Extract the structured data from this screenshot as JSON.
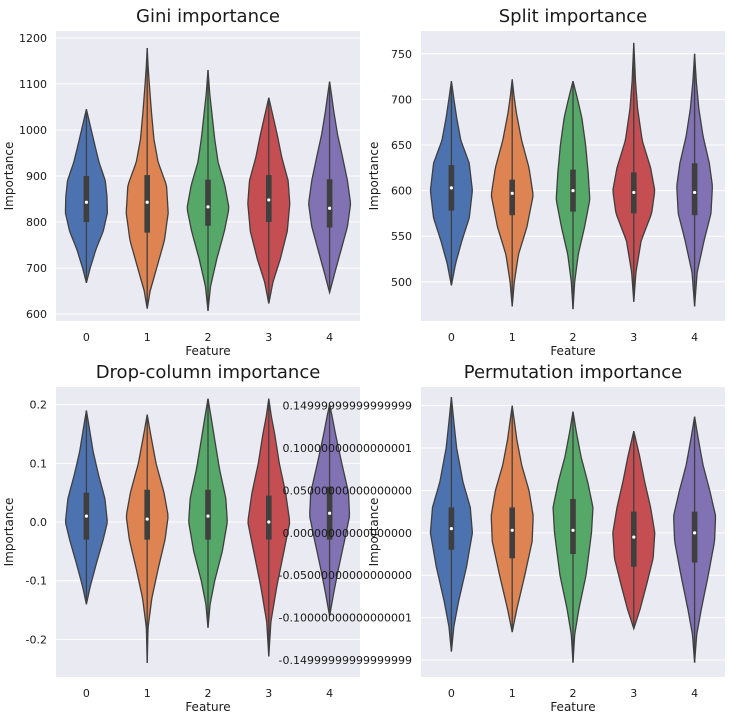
{
  "chart_data": [
    {
      "type": "violin",
      "title": "Gini importance",
      "xlabel": "Feature",
      "ylabel": "Importance",
      "ylim": [
        585,
        1215
      ],
      "yticks": [
        600,
        700,
        800,
        900,
        1000,
        1100,
        1200
      ],
      "grid": true,
      "categories": [
        "0",
        "1",
        "2",
        "3",
        "4"
      ],
      "colors": [
        "#4c72b0",
        "#dd8452",
        "#55a868",
        "#c44e52",
        "#8172b3"
      ],
      "series": [
        {
          "category": "0",
          "min": 668,
          "q1": 800,
          "median": 843,
          "q3": 900,
          "max": 1045,
          "profile": [
            [
              668,
              0
            ],
            [
              700,
              0.18
            ],
            [
              740,
              0.45
            ],
            [
              780,
              0.8
            ],
            [
              820,
              1.0
            ],
            [
              855,
              0.98
            ],
            [
              890,
              0.9
            ],
            [
              930,
              0.6
            ],
            [
              975,
              0.36
            ],
            [
              1010,
              0.18
            ],
            [
              1045,
              0
            ]
          ]
        },
        {
          "category": "1",
          "min": 612,
          "q1": 777,
          "median": 843,
          "q3": 902,
          "max": 1178,
          "profile": [
            [
              612,
              0
            ],
            [
              650,
              0.14
            ],
            [
              700,
              0.45
            ],
            [
              760,
              0.82
            ],
            [
              820,
              1.0
            ],
            [
              880,
              0.92
            ],
            [
              930,
              0.52
            ],
            [
              980,
              0.32
            ],
            [
              1040,
              0.2
            ],
            [
              1100,
              0.1
            ],
            [
              1140,
              0.04
            ],
            [
              1178,
              0
            ]
          ]
        },
        {
          "category": "2",
          "min": 607,
          "q1": 792,
          "median": 833,
          "q3": 892,
          "max": 1130,
          "profile": [
            [
              607,
              0
            ],
            [
              660,
              0.12
            ],
            [
              720,
              0.42
            ],
            [
              780,
              0.78
            ],
            [
              830,
              1.0
            ],
            [
              880,
              0.8
            ],
            [
              930,
              0.48
            ],
            [
              980,
              0.32
            ],
            [
              1030,
              0.2
            ],
            [
              1080,
              0.08
            ],
            [
              1130,
              0
            ]
          ]
        },
        {
          "category": "3",
          "min": 623,
          "q1": 800,
          "median": 848,
          "q3": 902,
          "max": 1070,
          "profile": [
            [
              623,
              0
            ],
            [
              670,
              0.2
            ],
            [
              720,
              0.55
            ],
            [
              780,
              0.88
            ],
            [
              840,
              1.0
            ],
            [
              890,
              0.92
            ],
            [
              940,
              0.62
            ],
            [
              990,
              0.4
            ],
            [
              1030,
              0.2
            ],
            [
              1070,
              0
            ]
          ]
        },
        {
          "category": "4",
          "min": 647,
          "q1": 788,
          "median": 830,
          "q3": 893,
          "max": 1105,
          "profile": [
            [
              647,
              0
            ],
            [
              690,
              0.25
            ],
            [
              740,
              0.55
            ],
            [
              790,
              0.85
            ],
            [
              840,
              1.0
            ],
            [
              890,
              0.85
            ],
            [
              940,
              0.62
            ],
            [
              990,
              0.38
            ],
            [
              1040,
              0.2
            ],
            [
              1080,
              0.08
            ],
            [
              1105,
              0
            ]
          ]
        }
      ]
    },
    {
      "type": "violin",
      "title": "Split importance",
      "xlabel": "Feature",
      "ylabel": "Importance",
      "ylim": [
        457,
        775
      ],
      "yticks": [
        500,
        550,
        600,
        650,
        700,
        750
      ],
      "grid": true,
      "categories": [
        "0",
        "1",
        "2",
        "3",
        "4"
      ],
      "colors": [
        "#4c72b0",
        "#dd8452",
        "#55a868",
        "#c44e52",
        "#8172b3"
      ],
      "series": [
        {
          "category": "0",
          "min": 496,
          "q1": 578,
          "median": 603,
          "q3": 628,
          "max": 720,
          "profile": [
            [
              496,
              0
            ],
            [
              520,
              0.2
            ],
            [
              545,
              0.5
            ],
            [
              570,
              0.85
            ],
            [
              600,
              1.0
            ],
            [
              630,
              0.85
            ],
            [
              655,
              0.45
            ],
            [
              680,
              0.25
            ],
            [
              700,
              0.12
            ],
            [
              720,
              0
            ]
          ]
        },
        {
          "category": "1",
          "min": 473,
          "q1": 573,
          "median": 597,
          "q3": 612,
          "max": 722,
          "profile": [
            [
              473,
              0
            ],
            [
              500,
              0.1
            ],
            [
              530,
              0.3
            ],
            [
              560,
              0.7
            ],
            [
              595,
              1.0
            ],
            [
              625,
              0.8
            ],
            [
              655,
              0.45
            ],
            [
              685,
              0.2
            ],
            [
              705,
              0.08
            ],
            [
              722,
              0
            ]
          ]
        },
        {
          "category": "2",
          "min": 470,
          "q1": 577,
          "median": 600,
          "q3": 623,
          "max": 720,
          "profile": [
            [
              470,
              0
            ],
            [
              500,
              0.08
            ],
            [
              530,
              0.25
            ],
            [
              560,
              0.55
            ],
            [
              590,
              0.8
            ],
            [
              620,
              0.72
            ],
            [
              650,
              0.6
            ],
            [
              680,
              0.42
            ],
            [
              700,
              0.22
            ],
            [
              720,
              0
            ]
          ]
        },
        {
          "category": "3",
          "min": 478,
          "q1": 575,
          "median": 598,
          "q3": 620,
          "max": 762,
          "profile": [
            [
              478,
              0
            ],
            [
              510,
              0.1
            ],
            [
              545,
              0.35
            ],
            [
              575,
              0.85
            ],
            [
              600,
              1.0
            ],
            [
              625,
              0.8
            ],
            [
              655,
              0.4
            ],
            [
              690,
              0.18
            ],
            [
              720,
              0.08
            ],
            [
              762,
              0
            ]
          ]
        },
        {
          "category": "4",
          "min": 473,
          "q1": 573,
          "median": 598,
          "q3": 630,
          "max": 750,
          "profile": [
            [
              473,
              0
            ],
            [
              510,
              0.12
            ],
            [
              545,
              0.45
            ],
            [
              575,
              0.78
            ],
            [
              605,
              0.85
            ],
            [
              630,
              0.7
            ],
            [
              660,
              0.4
            ],
            [
              690,
              0.2
            ],
            [
              720,
              0.08
            ],
            [
              750,
              0
            ]
          ]
        }
      ]
    },
    {
      "type": "violin",
      "title": "Drop-column importance",
      "xlabel": "Feature",
      "ylabel": "Importance",
      "ylim": [
        -0.264,
        0.23
      ],
      "yticks": [
        -0.2,
        -0.1,
        0.0,
        0.1,
        0.2
      ],
      "grid": true,
      "categories": [
        "0",
        "1",
        "2",
        "3",
        "4"
      ],
      "colors": [
        "#4c72b0",
        "#dd8452",
        "#55a868",
        "#c44e52",
        "#8172b3"
      ],
      "series": [
        {
          "category": "0",
          "min": -0.14,
          "q1": -0.03,
          "median": 0.01,
          "q3": 0.05,
          "max": 0.19,
          "profile": [
            [
              -0.14,
              0
            ],
            [
              -0.11,
              0.18
            ],
            [
              -0.07,
              0.48
            ],
            [
              -0.03,
              0.8
            ],
            [
              0.0,
              1.0
            ],
            [
              0.04,
              0.88
            ],
            [
              0.08,
              0.58
            ],
            [
              0.12,
              0.32
            ],
            [
              0.16,
              0.14
            ],
            [
              0.19,
              0
            ]
          ]
        },
        {
          "category": "1",
          "min": -0.24,
          "q1": -0.03,
          "median": 0.005,
          "q3": 0.055,
          "max": 0.183,
          "profile": [
            [
              -0.24,
              0
            ],
            [
              -0.18,
              0.04
            ],
            [
              -0.13,
              0.22
            ],
            [
              -0.08,
              0.52
            ],
            [
              -0.03,
              0.85
            ],
            [
              0.01,
              1.0
            ],
            [
              0.05,
              0.8
            ],
            [
              0.1,
              0.42
            ],
            [
              0.15,
              0.16
            ],
            [
              0.183,
              0
            ]
          ]
        },
        {
          "category": "2",
          "min": -0.18,
          "q1": -0.03,
          "median": 0.01,
          "q3": 0.055,
          "max": 0.21,
          "profile": [
            [
              -0.18,
              0
            ],
            [
              -0.14,
              0.1
            ],
            [
              -0.1,
              0.32
            ],
            [
              -0.05,
              0.68
            ],
            [
              0.0,
              0.92
            ],
            [
              0.04,
              0.85
            ],
            [
              0.09,
              0.55
            ],
            [
              0.14,
              0.32
            ],
            [
              0.18,
              0.14
            ],
            [
              0.21,
              0
            ]
          ]
        },
        {
          "category": "3",
          "min": -0.229,
          "q1": -0.03,
          "median": 0.0,
          "q3": 0.045,
          "max": 0.21,
          "profile": [
            [
              -0.229,
              0
            ],
            [
              -0.17,
              0.1
            ],
            [
              -0.11,
              0.38
            ],
            [
              -0.05,
              0.72
            ],
            [
              0.0,
              1.0
            ],
            [
              0.05,
              0.8
            ],
            [
              0.1,
              0.5
            ],
            [
              0.15,
              0.28
            ],
            [
              0.18,
              0.12
            ],
            [
              0.21,
              0
            ]
          ]
        },
        {
          "category": "4",
          "min": -0.16,
          "q1": -0.03,
          "median": 0.015,
          "q3": 0.06,
          "max": 0.2,
          "profile": [
            [
              -0.16,
              0
            ],
            [
              -0.12,
              0.2
            ],
            [
              -0.08,
              0.42
            ],
            [
              -0.03,
              0.72
            ],
            [
              0.01,
              0.95
            ],
            [
              0.05,
              0.9
            ],
            [
              0.1,
              0.58
            ],
            [
              0.15,
              0.28
            ],
            [
              0.18,
              0.12
            ],
            [
              0.2,
              0
            ]
          ]
        }
      ]
    },
    {
      "type": "violin",
      "title": "Permutation importance",
      "xlabel": "Feature",
      "ylabel": "Importance",
      "ylim": [
        -0.17,
        0.172
      ],
      "yticks": [
        -0.15,
        -0.1,
        -0.05,
        0.0,
        0.05,
        0.1,
        0.15
      ],
      "grid": true,
      "categories": [
        "0",
        "1",
        "2",
        "3",
        "4"
      ],
      "colors": [
        "#4c72b0",
        "#dd8452",
        "#55a868",
        "#c44e52",
        "#8172b3"
      ],
      "series": [
        {
          "category": "0",
          "min": -0.14,
          "q1": -0.02,
          "median": 0.005,
          "q3": 0.03,
          "max": 0.16,
          "profile": [
            [
              -0.14,
              0
            ],
            [
              -0.11,
              0.12
            ],
            [
              -0.08,
              0.35
            ],
            [
              -0.04,
              0.72
            ],
            [
              0.0,
              1.0
            ],
            [
              0.03,
              0.9
            ],
            [
              0.06,
              0.55
            ],
            [
              0.1,
              0.25
            ],
            [
              0.13,
              0.12
            ],
            [
              0.16,
              0
            ]
          ]
        },
        {
          "category": "1",
          "min": -0.117,
          "q1": -0.03,
          "median": 0.003,
          "q3": 0.03,
          "max": 0.15,
          "profile": [
            [
              -0.117,
              0
            ],
            [
              -0.09,
              0.22
            ],
            [
              -0.05,
              0.6
            ],
            [
              -0.01,
              0.95
            ],
            [
              0.02,
              1.0
            ],
            [
              0.05,
              0.8
            ],
            [
              0.08,
              0.45
            ],
            [
              0.11,
              0.22
            ],
            [
              0.15,
              0
            ]
          ]
        },
        {
          "category": "2",
          "min": -0.153,
          "q1": -0.025,
          "median": 0.003,
          "q3": 0.04,
          "max": 0.143,
          "profile": [
            [
              -0.153,
              0
            ],
            [
              -0.12,
              0.08
            ],
            [
              -0.09,
              0.28
            ],
            [
              -0.05,
              0.62
            ],
            [
              0.0,
              0.88
            ],
            [
              0.03,
              0.95
            ],
            [
              0.06,
              0.7
            ],
            [
              0.09,
              0.38
            ],
            [
              0.12,
              0.15
            ],
            [
              0.143,
              0
            ]
          ]
        },
        {
          "category": "3",
          "min": -0.113,
          "q1": -0.04,
          "median": -0.005,
          "q3": 0.025,
          "max": 0.12,
          "profile": [
            [
              -0.113,
              0
            ],
            [
              -0.09,
              0.3
            ],
            [
              -0.06,
              0.62
            ],
            [
              -0.03,
              0.92
            ],
            [
              0.0,
              1.0
            ],
            [
              0.03,
              0.8
            ],
            [
              0.06,
              0.52
            ],
            [
              0.09,
              0.28
            ],
            [
              0.12,
              0
            ]
          ]
        },
        {
          "category": "4",
          "min": -0.153,
          "q1": -0.035,
          "median": 0.0,
          "q3": 0.025,
          "max": 0.137,
          "profile": [
            [
              -0.153,
              0
            ],
            [
              -0.12,
              0.1
            ],
            [
              -0.09,
              0.32
            ],
            [
              -0.05,
              0.65
            ],
            [
              -0.01,
              0.95
            ],
            [
              0.02,
              1.0
            ],
            [
              0.05,
              0.72
            ],
            [
              0.08,
              0.4
            ],
            [
              0.11,
              0.18
            ],
            [
              0.137,
              0
            ]
          ]
        }
      ]
    }
  ]
}
